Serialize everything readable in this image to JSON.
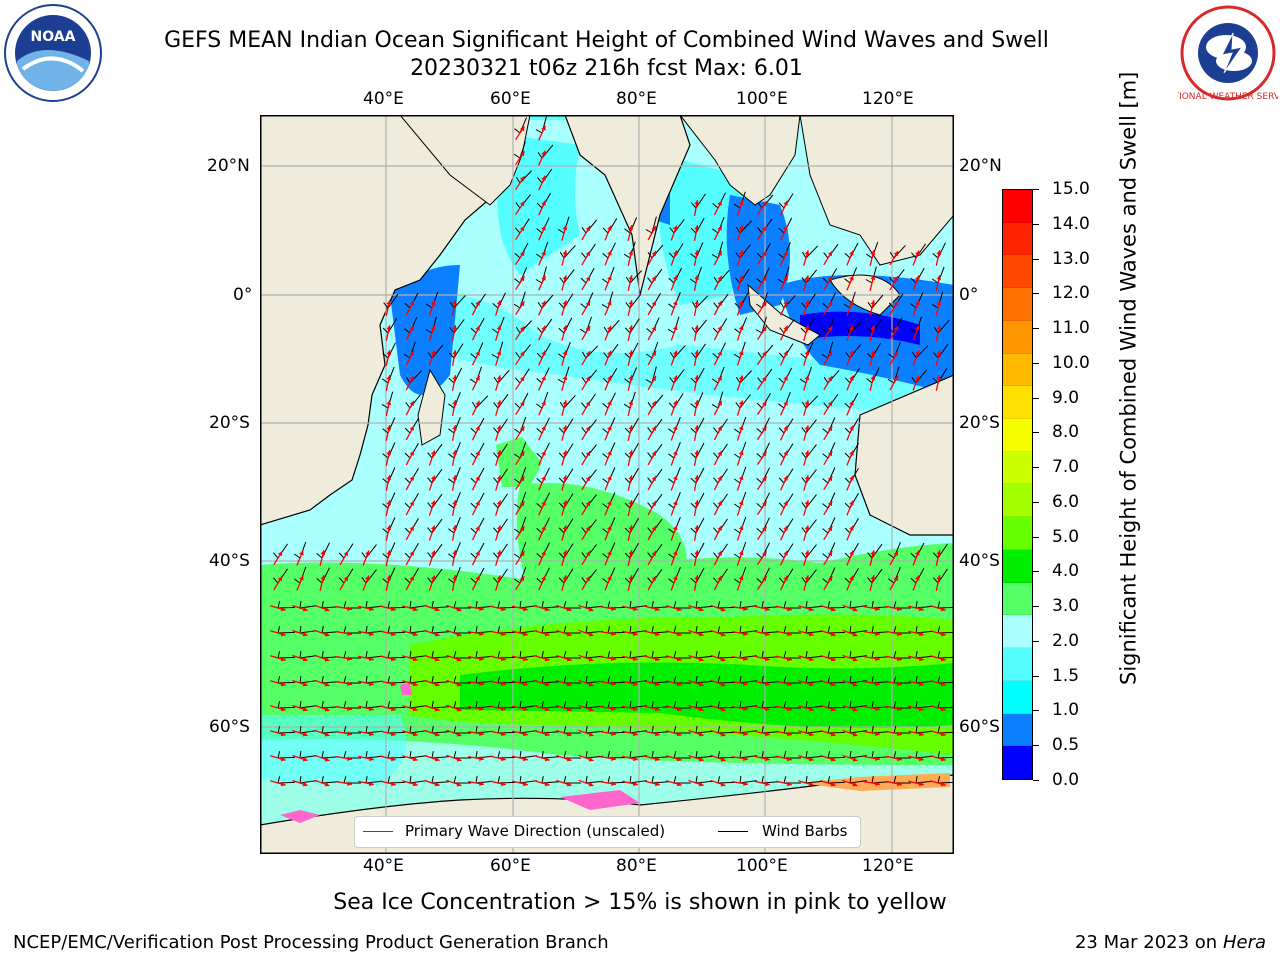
{
  "header": {
    "title_line1": "GEFS MEAN Indian Ocean Significant Height of Combined Wind Waves and Swell",
    "title_line2": "20230321 t06z 216h fcst   Max: 6.01"
  },
  "logos": {
    "noaa_text": "NOAA",
    "nws_text": "NATIONAL WEATHER SERVICE"
  },
  "map": {
    "lon_labels": [
      "40°E",
      "60°E",
      "80°E",
      "100°E",
      "120°E"
    ],
    "lat_labels": [
      "20°N",
      "0°",
      "20°S",
      "40°S",
      "60°S"
    ],
    "land_color": "#efecdc",
    "grid_color": "#b0b0b0",
    "arrow_color": "#ff0000",
    "barb_color": "#000000"
  },
  "legend": {
    "wave_label": "Primary Wave Direction (unscaled)",
    "barb_label": "Wind Barbs"
  },
  "colorbar": {
    "label": "Significant Height of Combined Wind Waves and Swell [m]",
    "ticks": [
      "15.0",
      "14.0",
      "13.0",
      "12.0",
      "11.0",
      "10.0",
      "9.0",
      "8.0",
      "7.0",
      "6.0",
      "5.0",
      "4.0",
      "3.0",
      "2.0",
      "1.5",
      "1.0",
      "0.5",
      "0.0"
    ],
    "colors": [
      "#ff0000",
      "#ff2400",
      "#ff4a00",
      "#ff7100",
      "#ff9600",
      "#ffba00",
      "#ffe000",
      "#f5ff00",
      "#ccff00",
      "#a3ff00",
      "#66ff00",
      "#00ee00",
      "#55ff66",
      "#aaffff",
      "#55ffff",
      "#00ffff",
      "#0a7fff",
      "#0000ff"
    ]
  },
  "footer": {
    "ice_note": "Sea Ice Concentration > 15% is shown in pink to yellow",
    "credit": "NCEP/EMC/Verification Post Processing Product Generation Branch",
    "date": "23 Mar 2023 on",
    "machine": "Hera"
  }
}
